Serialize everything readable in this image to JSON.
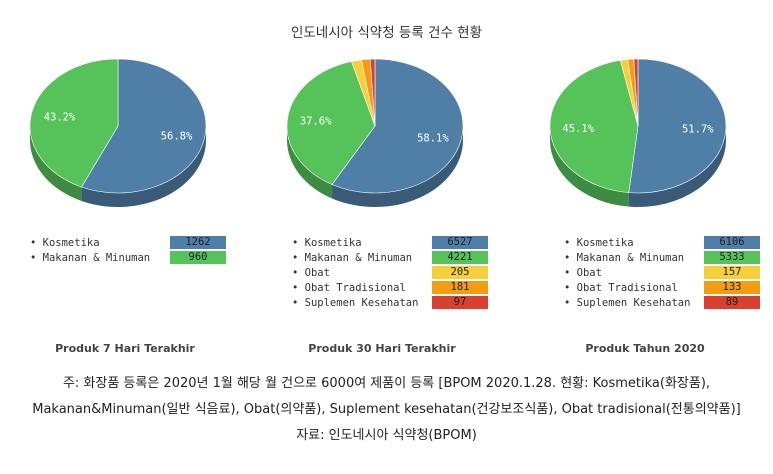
{
  "title": "인도네시아 식약청 등록 건수 현황",
  "chart_data": [
    {
      "type": "pie",
      "title": "Produk 7 Hari Terakhir",
      "series": [
        {
          "name": "Kosmetika",
          "value": 1262,
          "color": "#4f7fa7"
        },
        {
          "name": "Makanan & Minuman",
          "value": 960,
          "color": "#56c25a"
        }
      ],
      "percent_labels": [
        "56.8%",
        "43.2%"
      ]
    },
    {
      "type": "pie",
      "title": "Produk 30 Hari Terakhir",
      "series": [
        {
          "name": "Kosmetika",
          "value": 6527,
          "color": "#4f7fa7"
        },
        {
          "name": "Makanan & Minuman",
          "value": 4221,
          "color": "#56c25a"
        },
        {
          "name": "Obat",
          "value": 205,
          "color": "#f5cf3c"
        },
        {
          "name": "Obat Tradisional",
          "value": 181,
          "color": "#f59c15"
        },
        {
          "name": "Suplemen Kesehatan",
          "value": 97,
          "color": "#d9402f"
        }
      ],
      "percent_labels": [
        "58.1%",
        "37.6%",
        "",
        "",
        ""
      ]
    },
    {
      "type": "pie",
      "title": "Produk Tahun 2020",
      "series": [
        {
          "name": "Kosmetika",
          "value": 6106,
          "color": "#4f7fa7"
        },
        {
          "name": "Makanan & Minuman",
          "value": 5333,
          "color": "#56c25a"
        },
        {
          "name": "Obat",
          "value": 157,
          "color": "#f5cf3c"
        },
        {
          "name": "Obat Tradisional",
          "value": 133,
          "color": "#f59c15"
        },
        {
          "name": "Suplemen Kesehatan",
          "value": 89,
          "color": "#d9402f"
        }
      ],
      "percent_labels": [
        "51.7%",
        "45.1%",
        "",
        "",
        ""
      ]
    }
  ],
  "notes": {
    "line1": "주: 화장품 등록은 2020년 1월 해당 월 건으로 6000여 제품이 등록 [BPOM 2020.1.28. 현황: Kosmetika(화장품),",
    "line2": "Makanan&Minuman(일반 식음료), Obat(의약품), Suplement kesehatan(건강보조식품), Obat tradisional(전통의약품)]",
    "line3": "자료: 인도네시아 식약청(BPOM)"
  }
}
